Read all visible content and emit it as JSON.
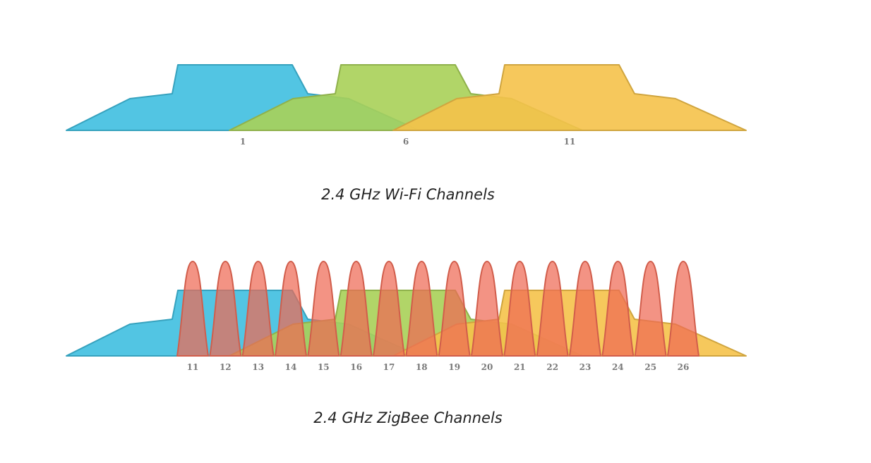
{
  "wifi_panel": {
    "caption": "2.4 GHz Wi-Fi Channels",
    "channels": [
      {
        "label": "1",
        "color": "#3fbfe0"
      },
      {
        "label": "6",
        "color": "#a8d058"
      },
      {
        "label": "11",
        "color": "#f5c24a"
      }
    ]
  },
  "zigbee_panel": {
    "caption": "2.4 GHz ZigBee Channels",
    "color": "#ee6a55",
    "channels": [
      "11",
      "12",
      "13",
      "14",
      "15",
      "16",
      "17",
      "18",
      "19",
      "20",
      "21",
      "22",
      "23",
      "24",
      "25",
      "26"
    ]
  }
}
